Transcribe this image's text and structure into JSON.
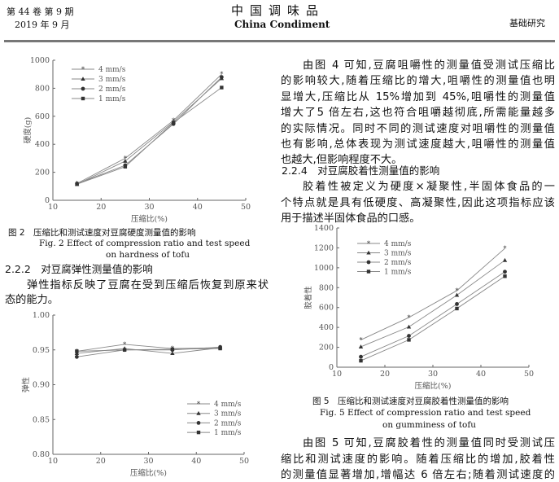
{
  "header": {
    "volume_issue": "第 44 卷 第 9 期",
    "date": "2019 年 9 月",
    "journal_cn": "中国调味品",
    "journal_en": "China Condiment",
    "section": "基础研究"
  },
  "left_column": {
    "fig2_caption_cn": "图 2　压缩比和测试速度对豆腐硬度测量值的影响",
    "fig2_caption_en_1": "Fig. 2 Effect of compression ratio and test speed",
    "fig2_caption_en_2": "on hardness of tofu",
    "heading_222": "2.2.2　对豆腐弹性测量值的影响",
    "para_222": [
      "弹性指标反映了豆腐在受到压缩后恢复到原来状",
      "态的能力。"
    ]
  },
  "right_column": {
    "para_fig4": [
      "由图 4 可知,豆腐咀嚼性的测量值受测试压缩比",
      "的影响较大,随着压缩比的增大,咀嚼性的测量值也明",
      "显增大,压缩比从 15%增加到 45%,咀嚼性的测量值",
      "增大了5 倍左右,这也符合咀嚼越彻底,所需能量越多",
      "的实际情况。同时不同的测试速度对咀嚼性的测量值",
      "也有影响,总体表现为测试速度越大,咀嚼性的测量值",
      "也越大,但影响程度不大。"
    ],
    "heading_224": "2.2.4　对豆腐胶着性测量值的影响",
    "para_224": [
      "胶着性被定义为硬度×凝聚性,半固体食品的一",
      "个特点就是具有低硬度、高凝聚性,因此这项指标应该",
      "用于描述半固体食品的口感。"
    ],
    "fig5_caption_cn": "图 5　压缩比和测试速度对豆腐胶着性测量值的影响",
    "fig5_caption_en_1": "Fig. 5 Effect of compression ratio and test speed",
    "fig5_caption_en_2": "on gumminess of tofu",
    "para_fig5": [
      "由图 5 可知,豆腐胶着性的测量值同时受测试压",
      "缩比和测试速度的影响。随着压缩比的增加,胶着性",
      "的测量值显著增加,增幅达 6 倍左右;随着测试速度的"
    ]
  },
  "chart_data": [
    {
      "type": "line",
      "xlabel": "压缩比(%)",
      "ylabel": "硬度(g)",
      "xlim": [
        10,
        50
      ],
      "ylim": [
        0,
        1000
      ],
      "xticks": [
        "10",
        "20",
        "30",
        "40",
        "50"
      ],
      "yticks": [
        "0",
        "200",
        "400",
        "600",
        "800",
        "1000"
      ],
      "legend_position": "top-left",
      "grid": false,
      "x": [
        15,
        25,
        35,
        45
      ],
      "series": [
        {
          "name": "4 mm/s",
          "marker": "star",
          "values": [
            120,
            300,
            570,
            900
          ]
        },
        {
          "name": "3 mm/s",
          "marker": "triangle",
          "values": [
            115,
            280,
            560,
            870
          ]
        },
        {
          "name": "2 mm/s",
          "marker": "circle",
          "values": [
            118,
            250,
            545,
            880
          ]
        },
        {
          "name": "1 mm/s",
          "marker": "square",
          "values": [
            115,
            240,
            555,
            805
          ]
        }
      ]
    },
    {
      "type": "line",
      "xlabel": "压缩比(%)",
      "ylabel": "弹性",
      "xlim": [
        10,
        50
      ],
      "ylim": [
        0.8,
        1.0
      ],
      "xticks": [
        "10",
        "20",
        "30",
        "40",
        "50"
      ],
      "yticks": [
        "0.80",
        "0.85",
        "0.90",
        "0.95",
        "1.00"
      ],
      "legend_position": "bottom-right",
      "grid": false,
      "x": [
        15,
        25,
        35,
        45
      ],
      "series": [
        {
          "name": "4 mm/s",
          "marker": "star",
          "values": [
            0.948,
            0.958,
            0.952,
            0.953
          ]
        },
        {
          "name": "3 mm/s",
          "marker": "triangle",
          "values": [
            0.945,
            0.952,
            0.945,
            0.953
          ]
        },
        {
          "name": "2 mm/s",
          "marker": "circle",
          "values": [
            0.94,
            0.95,
            0.95,
            0.954
          ]
        },
        {
          "name": "1 mm/s",
          "marker": "square",
          "values": [
            0.948,
            0.95,
            0.951,
            0.952
          ]
        }
      ]
    },
    {
      "type": "line",
      "xlabel": "压缩比(%)",
      "ylabel": "胶着性",
      "xlim": [
        10,
        50
      ],
      "ylim": [
        0,
        1400
      ],
      "xticks": [
        "10",
        "20",
        "30",
        "40",
        "50"
      ],
      "yticks": [
        "0",
        "200",
        "400",
        "600",
        "800",
        "1000",
        "1200",
        "1400"
      ],
      "legend_position": "top-left",
      "grid": false,
      "x": [
        15,
        25,
        35,
        45
      ],
      "series": [
        {
          "name": "4 mm/s",
          "marker": "star",
          "values": [
            275,
            500,
            770,
            1195
          ]
        },
        {
          "name": "3 mm/s",
          "marker": "triangle",
          "values": [
            205,
            405,
            725,
            1075
          ]
        },
        {
          "name": "2 mm/s",
          "marker": "circle",
          "values": [
            105,
            315,
            635,
            960
          ]
        },
        {
          "name": "1 mm/s",
          "marker": "square",
          "values": [
            65,
            275,
            590,
            915
          ]
        }
      ]
    }
  ]
}
